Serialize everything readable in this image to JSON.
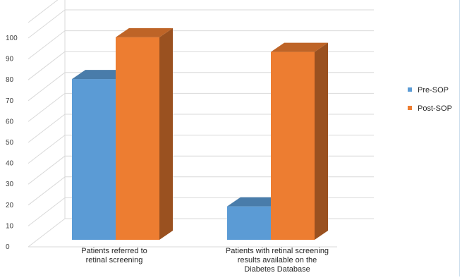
{
  "chart_data": {
    "type": "bar",
    "title": "",
    "xlabel": "",
    "ylabel": "",
    "ylim": [
      0,
      100
    ],
    "yticks": [
      0,
      10,
      20,
      30,
      40,
      50,
      60,
      70,
      80,
      90,
      100
    ],
    "grid": true,
    "three_d": true,
    "legend_position": "right",
    "categories": [
      [
        "Patients referred to",
        "retinal screening"
      ],
      [
        "Patients with retinal screening",
        "results available on the",
        "Diabetes Database"
      ]
    ],
    "series": [
      {
        "name": "Pre-SOP",
        "values": [
          77,
          16
        ],
        "color": "#5b9bd5"
      },
      {
        "name": "Post-SOP",
        "values": [
          97,
          90
        ],
        "color": "#ed7d31"
      }
    ]
  }
}
